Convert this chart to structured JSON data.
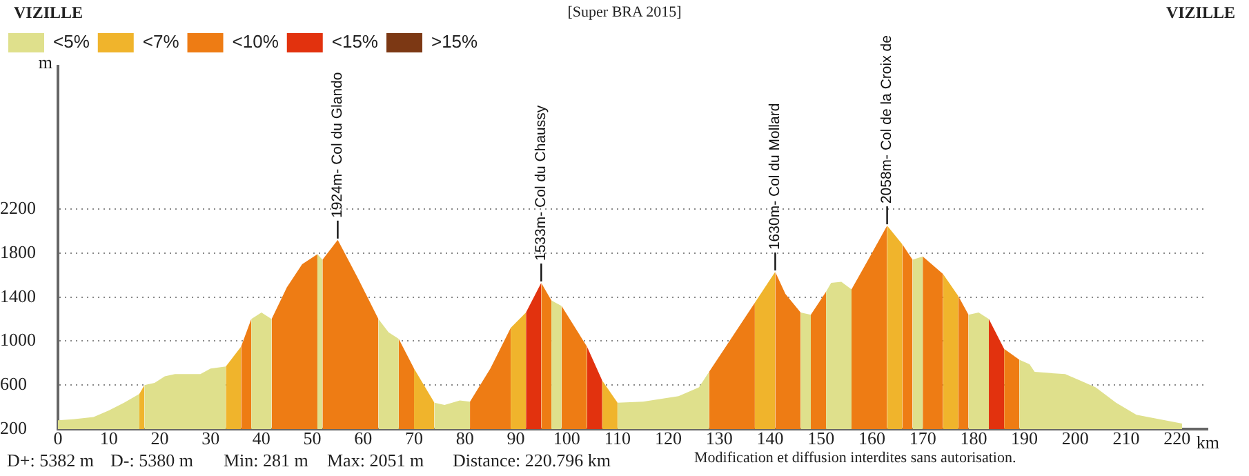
{
  "chart_data": {
    "type": "area",
    "title": "[Super BRA 2015]",
    "xlabel": "km",
    "ylabel": "m",
    "xlim": [
      0,
      226
    ],
    "xticks": [
      0,
      10,
      20,
      30,
      40,
      50,
      60,
      70,
      80,
      90,
      100,
      110,
      120,
      130,
      140,
      150,
      160,
      170,
      180,
      190,
      200,
      210,
      220
    ],
    "ylim": [
      200,
      3500
    ],
    "yticks": [
      200,
      600,
      1000,
      1400,
      1800,
      2200
    ],
    "grid": "y",
    "legend": "top left",
    "series": [
      {
        "name": "<5%",
        "color": "#dfe08c",
        "x": [
          0,
          3,
          7,
          10,
          13,
          16
        ],
        "values": [
          280,
          290,
          310,
          370,
          440,
          520
        ]
      },
      {
        "color": "#dfe08c",
        "x": [
          17,
          19,
          21,
          23,
          28,
          30,
          33
        ],
        "values": [
          600,
          620,
          680,
          700,
          700,
          750,
          770
        ]
      },
      {
        "color": "#dfe08c",
        "x": [
          38,
          40,
          42
        ],
        "values": [
          1200,
          1260,
          1200
        ]
      },
      {
        "color": "#dfe08c",
        "x": [
          51,
          52
        ],
        "values": [
          1790,
          1740
        ]
      },
      {
        "color": "#dfe08c",
        "x": [
          63,
          65,
          67
        ],
        "values": [
          1200,
          1080,
          1020
        ]
      },
      {
        "color": "#dfe08c",
        "x": [
          74,
          76,
          79,
          81
        ],
        "values": [
          440,
          420,
          460,
          450
        ]
      },
      {
        "color": "#dfe08c",
        "x": [
          97,
          99
        ],
        "values": [
          1370,
          1320
        ]
      },
      {
        "color": "#dfe08c",
        "x": [
          110,
          115,
          122,
          126,
          128
        ],
        "values": [
          440,
          450,
          500,
          580,
          720
        ]
      },
      {
        "color": "#dfe08c",
        "x": [
          146,
          148
        ],
        "values": [
          1260,
          1240
        ]
      },
      {
        "color": "#dfe08c",
        "x": [
          151,
          152,
          154,
          156
        ],
        "values": [
          1450,
          1530,
          1540,
          1470
        ]
      },
      {
        "color": "#dfe08c",
        "x": [
          168,
          170
        ],
        "values": [
          1740,
          1770
        ]
      },
      {
        "color": "#dfe08c",
        "x": [
          179,
          181,
          183
        ],
        "values": [
          1240,
          1260,
          1200
        ]
      },
      {
        "color": "#dfe08c",
        "x": [
          189,
          191,
          192,
          198,
          201,
          204,
          208,
          212,
          221
        ],
        "values": [
          830,
          790,
          720,
          700,
          640,
          580,
          440,
          330,
          250
        ]
      },
      {
        "name": "<7%",
        "color": "#f0b42c",
        "x": [
          16,
          17
        ],
        "values": [
          520,
          600
        ]
      },
      {
        "color": "#f0b42c",
        "x": [
          33,
          36
        ],
        "values": [
          770,
          950
        ]
      },
      {
        "color": "#f0b42c",
        "x": [
          70,
          74
        ],
        "values": [
          750,
          440
        ]
      },
      {
        "color": "#f0b42c",
        "x": [
          89,
          92
        ],
        "values": [
          1120,
          1260
        ]
      },
      {
        "color": "#f0b42c",
        "x": [
          107,
          110
        ],
        "values": [
          640,
          440
        ]
      },
      {
        "color": "#f0b42c",
        "x": [
          137,
          141
        ],
        "values": [
          1350,
          1630
        ]
      },
      {
        "color": "#f0b42c",
        "x": [
          163,
          166
        ],
        "values": [
          2050,
          1880
        ]
      },
      {
        "color": "#f0b42c",
        "x": [
          174,
          177
        ],
        "values": [
          1610,
          1410
        ]
      },
      {
        "name": "<10%",
        "color": "#ee7c14",
        "x": [
          36,
          38
        ],
        "values": [
          950,
          1200
        ]
      },
      {
        "color": "#ee7c14",
        "x": [
          42,
          45,
          48,
          51
        ],
        "values": [
          1200,
          1490,
          1700,
          1790
        ]
      },
      {
        "color": "#ee7c14",
        "x": [
          52,
          55,
          59,
          63
        ],
        "values": [
          1740,
          1920,
          1570,
          1200
        ]
      },
      {
        "color": "#ee7c14",
        "x": [
          67,
          70
        ],
        "values": [
          1020,
          750
        ]
      },
      {
        "color": "#ee7c14",
        "x": [
          81,
          85,
          89
        ],
        "values": [
          450,
          750,
          1120
        ]
      },
      {
        "color": "#ee7c14",
        "x": [
          95,
          97
        ],
        "values": [
          1530,
          1370
        ]
      },
      {
        "color": "#ee7c14",
        "x": [
          99,
          104
        ],
        "values": [
          1320,
          950
        ]
      },
      {
        "color": "#ee7c14",
        "x": [
          128,
          132,
          137
        ],
        "values": [
          720,
          1000,
          1350
        ]
      },
      {
        "color": "#ee7c14",
        "x": [
          141,
          143,
          146
        ],
        "values": [
          1630,
          1430,
          1260
        ]
      },
      {
        "color": "#ee7c14",
        "x": [
          148,
          151
        ],
        "values": [
          1240,
          1450
        ]
      },
      {
        "color": "#ee7c14",
        "x": [
          156,
          160,
          163
        ],
        "values": [
          1470,
          1800,
          2050
        ]
      },
      {
        "color": "#ee7c14",
        "x": [
          166,
          168
        ],
        "values": [
          1880,
          1740
        ]
      },
      {
        "color": "#ee7c14",
        "x": [
          170,
          174
        ],
        "values": [
          1770,
          1610
        ]
      },
      {
        "color": "#ee7c14",
        "x": [
          177,
          179
        ],
        "values": [
          1410,
          1240
        ]
      },
      {
        "color": "#ee7c14",
        "x": [
          186,
          189
        ],
        "values": [
          930,
          830
        ]
      },
      {
        "name": "<15%",
        "color": "#e2320e",
        "x": [
          92,
          95
        ],
        "values": [
          1260,
          1530
        ]
      },
      {
        "color": "#e2320e",
        "x": [
          104,
          107
        ],
        "values": [
          950,
          640
        ]
      },
      {
        "color": "#e2320e",
        "x": [
          183,
          186
        ],
        "values": [
          1200,
          930
        ]
      },
      {
        "name": ">15%",
        "color": "#7c3814"
      }
    ],
    "annotations": [
      "VIZILLE",
      "VIZILLE",
      "D+: 5382 m",
      "D-: 5380 m",
      "Min: 281 m",
      "Max: 2051 m",
      "Distance: 220.796 km",
      "Modification et diffusion interdites sans autorisation.",
      {
        "text": "1924m- Col du Glando",
        "x": 55,
        "y": 1920
      },
      {
        "text": "1533m- Col du Chaussy",
        "x": 95,
        "y": 1530
      },
      {
        "text": "1630m- Col du Mollard",
        "x": 141,
        "y": 1630
      },
      {
        "text": "2058m- Col de la Croix de",
        "x": 163,
        "y": 2050
      }
    ]
  }
}
